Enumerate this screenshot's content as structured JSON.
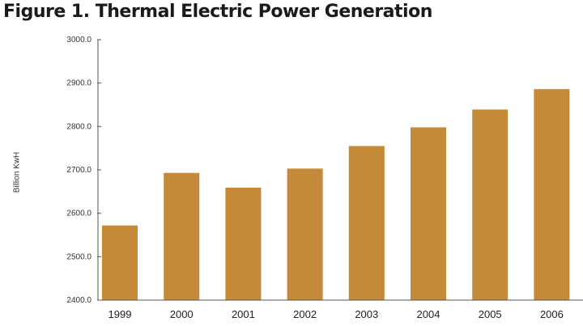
{
  "chart_data": {
    "type": "bar",
    "title": "Figure 1. Thermal Electric Power Generation",
    "xlabel": "",
    "ylabel": "Billion KwH",
    "categories": [
      "1999",
      "2000",
      "2001",
      "2002",
      "2003",
      "2004",
      "2005",
      "2006"
    ],
    "values": [
      2572,
      2693,
      2659,
      2703,
      2755,
      2798,
      2839,
      2886
    ],
    "ylim": [
      2400,
      3000
    ],
    "yticks": [
      "2400.0",
      "2500.0",
      "2600.0",
      "2700.0",
      "2800.0",
      "2900.0",
      "3000.0"
    ],
    "grid": false,
    "bar_color": "#c48a3a",
    "axis_color": "#555555"
  }
}
